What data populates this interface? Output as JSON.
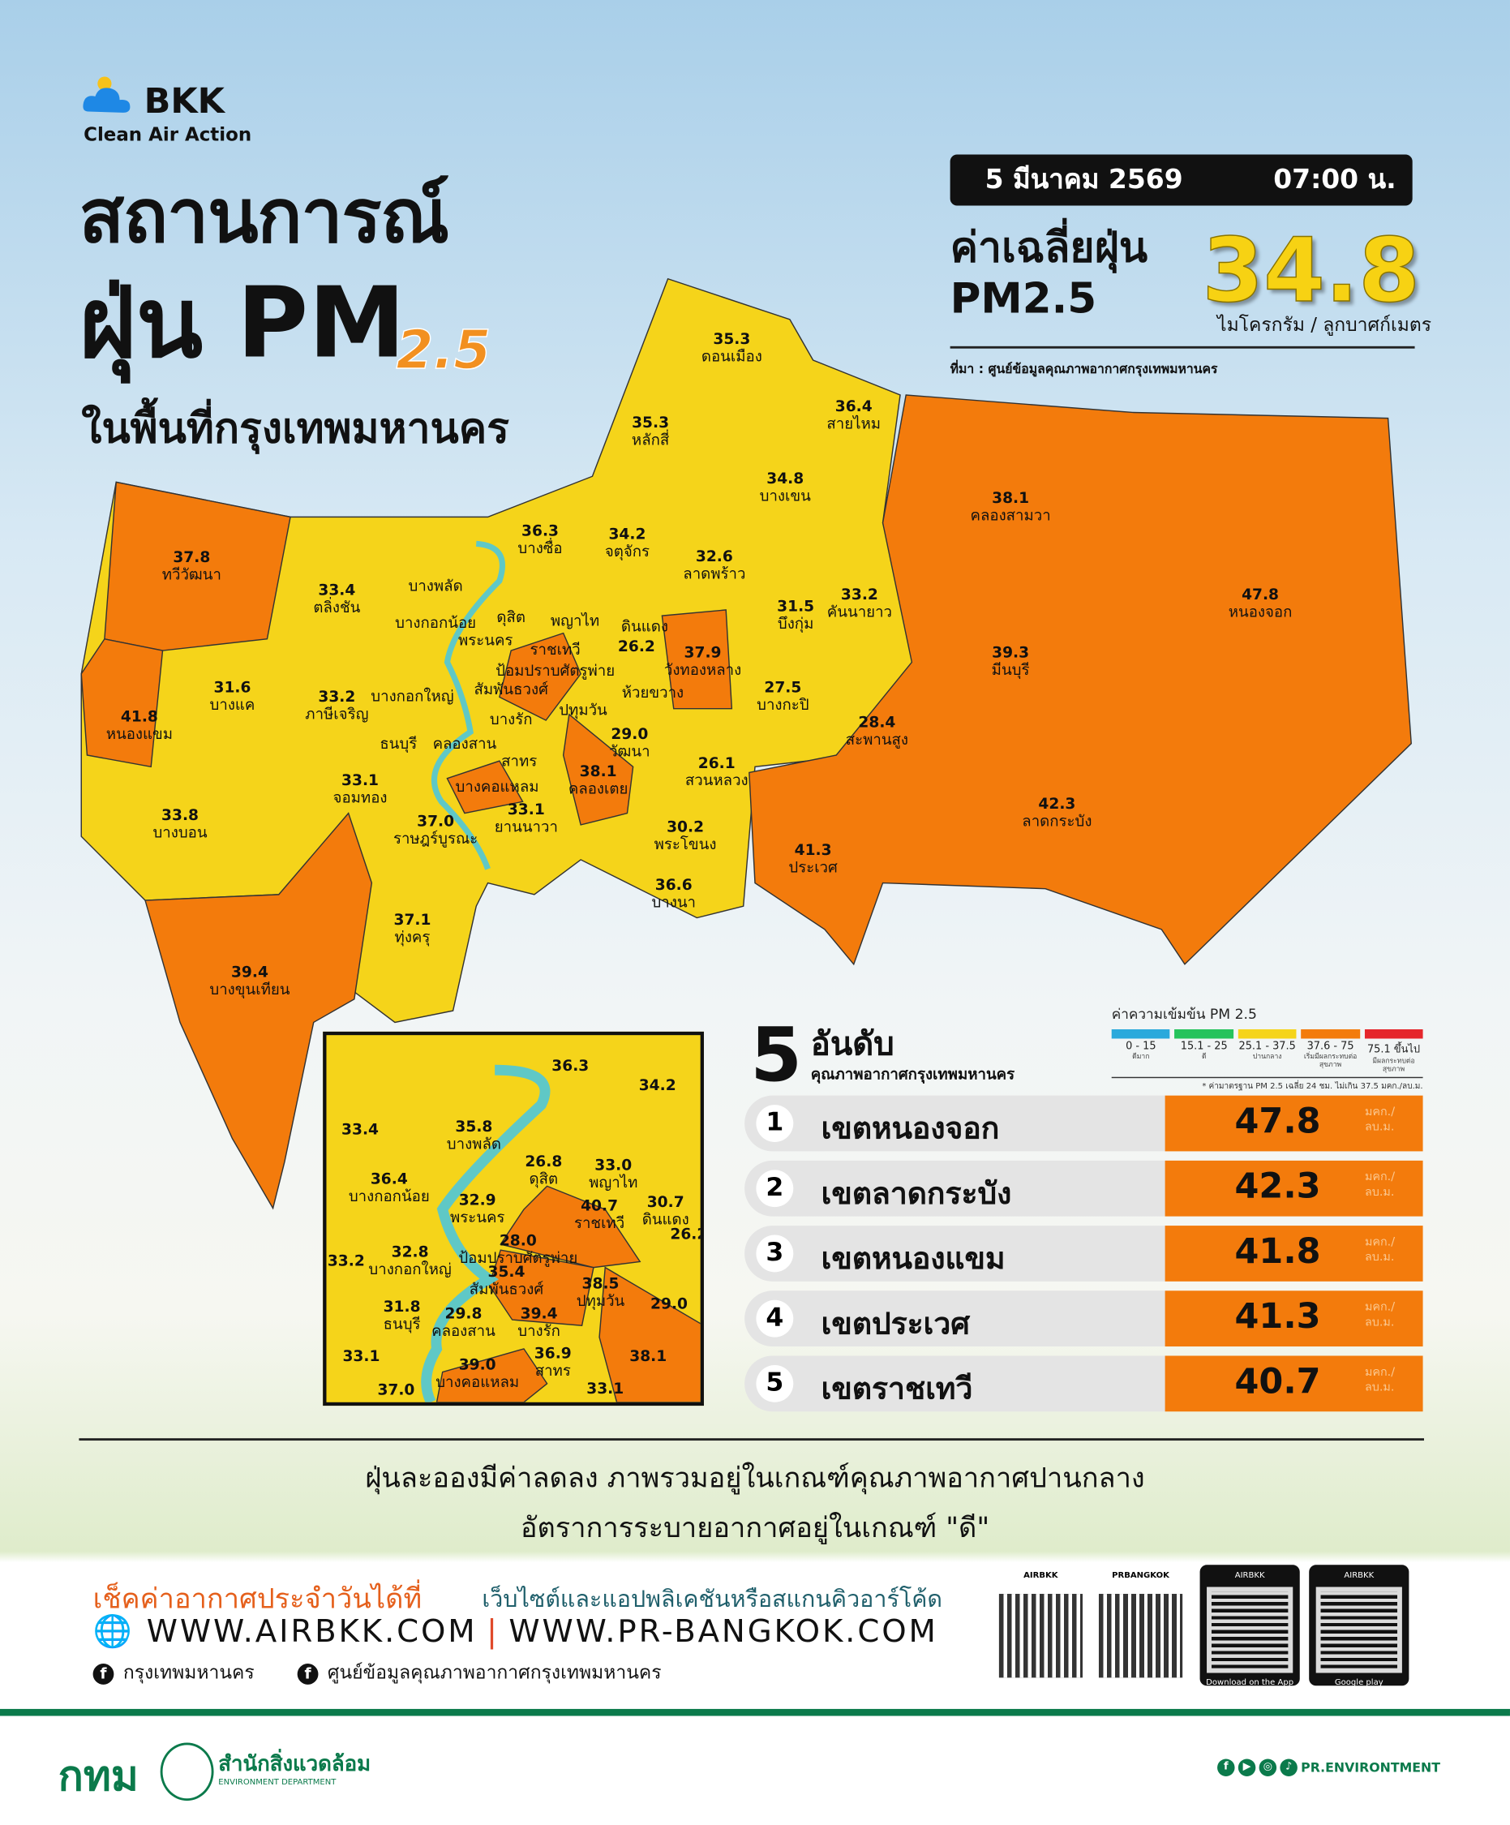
{
  "header": {
    "logo_name": "BKK",
    "logo_tagline": "Clean Air Action",
    "title_line1": "สถานการณ์",
    "title_line2_main": "ฝุ่น PM",
    "title_line2_sub": "2.5",
    "title_line3": "ในพื้นที่กรุงเทพมหานคร"
  },
  "summary_box": {
    "date": "5 มีนาคม 2569",
    "time": "07:00 น.",
    "avg_label_line1": "ค่าเฉลี่ยฝุ่น",
    "avg_label_line2": "PM2.5",
    "avg_value": "34.8",
    "unit": "ไมโครกรัม / ลูกบาศก์เมตร",
    "source": "ที่มา : ศูนย์ข้อมูลคุณภาพอากาศกรุงเทพมหานคร"
  },
  "colors": {
    "very_good": "#2aa9dc",
    "good": "#25c35c",
    "moderate": "#f5d41a",
    "starting_effect": "#f37b0c",
    "health_effect": "#e5262b",
    "river": "#5fc8c6"
  },
  "map_districts": [
    {
      "name": "ดอนเมือง",
      "value": "35.3"
    },
    {
      "name": "หลักสี่",
      "value": "35.3"
    },
    {
      "name": "สายไหม",
      "value": "36.4"
    },
    {
      "name": "บางเขน",
      "value": "34.8"
    },
    {
      "name": "คลองสามวา",
      "value": "38.1"
    },
    {
      "name": "หนองจอก",
      "value": "47.8"
    },
    {
      "name": "บางซื่อ",
      "value": "36.3"
    },
    {
      "name": "จตุจักร",
      "value": "34.2"
    },
    {
      "name": "ลาดพร้าว",
      "value": "32.6"
    },
    {
      "name": "คันนายาว",
      "value": "33.2"
    },
    {
      "name": "บึงกุ่ม",
      "value": "31.5"
    },
    {
      "name": "ทวีวัฒนา",
      "value": "37.8"
    },
    {
      "name": "ตลิ่งชัน",
      "value": "33.4"
    },
    {
      "name": "บางพลัด",
      "value": ""
    },
    {
      "name": "บางกอกน้อย",
      "value": ""
    },
    {
      "name": "ดุสิต",
      "value": ""
    },
    {
      "name": "พญาไท",
      "value": ""
    },
    {
      "name": "ดินแดง",
      "value": ""
    },
    {
      "name": "พระนคร",
      "value": ""
    },
    {
      "name": "ราชเทวี",
      "value": ""
    },
    {
      "name": "ป้อมปราบศัตรูพ่าย",
      "value": ""
    },
    {
      "name": "",
      "value": "26.2"
    },
    {
      "name": "วังทองหลาง",
      "value": "37.9"
    },
    {
      "name": "บางกะปิ",
      "value": "27.5"
    },
    {
      "name": "มีนบุรี",
      "value": "39.3"
    },
    {
      "name": "หนองแขม",
      "value": "41.8"
    },
    {
      "name": "บางแค",
      "value": "31.6"
    },
    {
      "name": "ภาษีเจริญ",
      "value": "33.2"
    },
    {
      "name": "บางกอกใหญ่",
      "value": ""
    },
    {
      "name": "สัมพันธวงศ์",
      "value": ""
    },
    {
      "name": "ห้วยขวาง",
      "value": ""
    },
    {
      "name": "ปทุมวัน",
      "value": ""
    },
    {
      "name": "บางรัก",
      "value": ""
    },
    {
      "name": "ธนบุรี",
      "value": ""
    },
    {
      "name": "คลองสาน",
      "value": ""
    },
    {
      "name": "สะพานสูง",
      "value": "28.4"
    },
    {
      "name": "วัฒนา",
      "value": "29.0"
    },
    {
      "name": "สาทร",
      "value": ""
    },
    {
      "name": "สวนหลวง",
      "value": "26.1"
    },
    {
      "name": "คลองเตย",
      "value": "38.1"
    },
    {
      "name": "จอมทอง",
      "value": "33.1"
    },
    {
      "name": "บางคอแหลม",
      "value": ""
    },
    {
      "name": "ลาดกระบัง",
      "value": "42.3"
    },
    {
      "name": "บางบอน",
      "value": "33.8"
    },
    {
      "name": "ยานนาวา",
      "value": "33.1"
    },
    {
      "name": "ราษฎร์บูรณะ",
      "value": "37.0"
    },
    {
      "name": "พระโขนง",
      "value": "30.2"
    },
    {
      "name": "ประเวศ",
      "value": "41.3"
    },
    {
      "name": "บางนา",
      "value": "36.6"
    },
    {
      "name": "ทุ่งครุ",
      "value": "37.1"
    },
    {
      "name": "บางขุนเทียน",
      "value": "39.4"
    }
  ],
  "inset_districts": [
    {
      "name": "",
      "value": "36.3"
    },
    {
      "name": "",
      "value": "34.2"
    },
    {
      "name": "",
      "value": "33.4"
    },
    {
      "name": "บางพลัด",
      "value": "35.8"
    },
    {
      "name": "ดุสิต",
      "value": "26.8"
    },
    {
      "name": "พญาไท",
      "value": "33.0"
    },
    {
      "name": "บางกอกน้อย",
      "value": "36.4"
    },
    {
      "name": "ดินแดง",
      "value": "30.7"
    },
    {
      "name": "พระนคร",
      "value": "32.9"
    },
    {
      "name": "ราชเทวี",
      "value": "40.7"
    },
    {
      "name": "ป้อมปราบศัตรูพ่าย",
      "value": "28.0"
    },
    {
      "name": "",
      "value": "26.2"
    },
    {
      "name": "สัมพันธวงศ์",
      "value": "35.4"
    },
    {
      "name": "",
      "value": "33.2"
    },
    {
      "name": "บางกอกใหญ่",
      "value": "32.8"
    },
    {
      "name": "ปทุมวัน",
      "value": "38.5"
    },
    {
      "name": "คลองสาน",
      "value": "29.8"
    },
    {
      "name": "บางรัก",
      "value": "39.4"
    },
    {
      "name": "ธนบุรี",
      "value": "31.8"
    },
    {
      "name": "",
      "value": "29.0"
    },
    {
      "name": "สาทร",
      "value": "36.9"
    },
    {
      "name": "",
      "value": "33.1"
    },
    {
      "name": "",
      "value": "38.1"
    },
    {
      "name": "บางคอแหลม",
      "value": "39.0"
    },
    {
      "name": "",
      "value": "33.1"
    },
    {
      "name": "",
      "value": "37.0"
    }
  ],
  "top5": {
    "number": "5",
    "title": "อันดับ",
    "subtitle": "คุณภาพอากาศกรุงเทพมหานคร",
    "unit_line1": "มคก./",
    "unit_line2": "ลบ.ม.",
    "rows": [
      {
        "rank": "1",
        "name": "เขตหนองจอก",
        "value": "47.8"
      },
      {
        "rank": "2",
        "name": "เขตลาดกระบัง",
        "value": "42.3"
      },
      {
        "rank": "3",
        "name": "เขตหนองแขม",
        "value": "41.8"
      },
      {
        "rank": "4",
        "name": "เขตประเวศ",
        "value": "41.3"
      },
      {
        "rank": "5",
        "name": "เขตราชเทวี",
        "value": "40.7"
      }
    ]
  },
  "legend": {
    "title": "ค่าความเข้มข้น  PM 2.5",
    "items": [
      {
        "range": "0 - 15",
        "desc": "ดีมาก",
        "color": "#2aa9dc"
      },
      {
        "range": "15.1 - 25",
        "desc": "ดี",
        "color": "#25c35c"
      },
      {
        "range": "25.1 - 37.5",
        "desc": "ปานกลาง",
        "color": "#f5d41a"
      },
      {
        "range": "37.6 - 75",
        "desc": "เริ่มมีผลกระทบต่อสุขภาพ",
        "color": "#f37b0c"
      },
      {
        "range": "75.1 ขึ้นไป",
        "desc": "มีผลกระทบต่อสุขภาพ",
        "color": "#e5262b"
      }
    ],
    "note": "* ค่ามาตรฐาน PM 2.5 เฉลี่ย 24 ชม. ไม่เกิน 37.5 มคก./ลบ.ม."
  },
  "summary_text": {
    "line1": "ฝุ่นละอองมีค่าลดลง ภาพรวมอยู่ในเกณฑ์คุณภาพอากาศปานกลาง",
    "line2": "อัตราการระบายอากาศอยู่ในเกณฑ์ \"ดี\""
  },
  "footer": {
    "check_label": "เช็คค่าอากาศประจำวันได้ที่",
    "check_desc": "เว็บไซต์และแอปพลิเคชันหรือสแกนคิวอาร์โค้ด",
    "url1": "WWW.AIRBKK.COM",
    "url2": "WWW.PR-BANGKOK.COM",
    "fb1": "กรุงเทพมหานคร",
    "fb2": "ศูนย์ข้อมูลคุณภาพอากาศกรุงเทพมหานคร",
    "qr1_label": "AIRBKK",
    "qr2_label": "PRBANGKOK",
    "app_store_label": "AIRBKK",
    "app_store_text": "Download on the App Store",
    "play_label": "AIRBKK",
    "play_text": "Google play",
    "org_logo": "กทม",
    "dept_th": "สำนักสิ่งแวดล้อม",
    "dept_en": "ENVIRONMENT DEPARTMENT",
    "social_handle": "PR.ENVIRONTMENT"
  }
}
